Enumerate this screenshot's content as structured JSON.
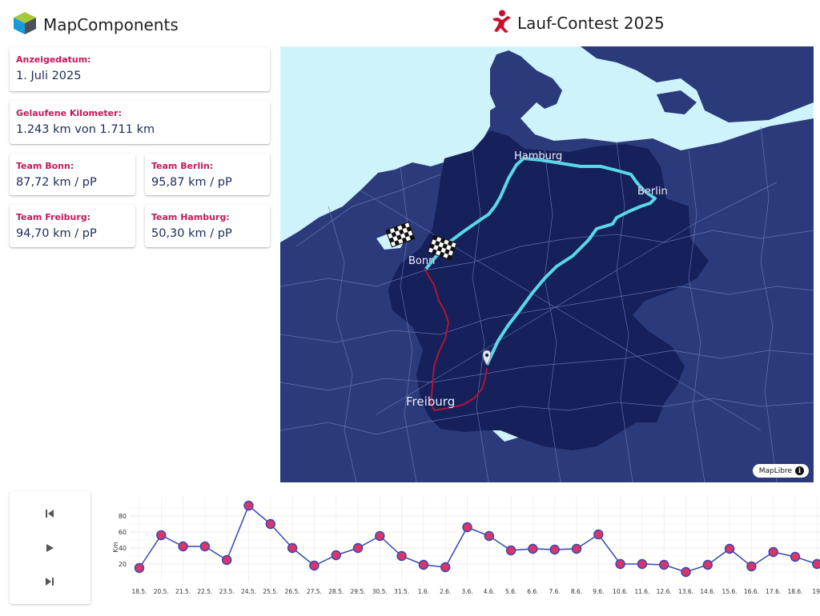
{
  "header": {
    "brand": "MapComponents",
    "contest_title": "Lauf-Contest 2025"
  },
  "cards": {
    "date": {
      "label": "Anzeigedatum:",
      "value": "1. Juli 2025"
    },
    "km": {
      "label": "Gelaufene Kilometer:",
      "value": "1.243 km von 1.711 km"
    },
    "teams": [
      {
        "label": "Team Bonn:",
        "value": "87,72 km / pP"
      },
      {
        "label": "Team Berlin:",
        "value": "95,87 km / pP"
      },
      {
        "label": "Team Freiburg:",
        "value": "94,70 km / pP"
      },
      {
        "label": "Team Hamburg:",
        "value": "50,30 km / pP"
      }
    ]
  },
  "map": {
    "cities": [
      "Hamburg",
      "Berlin",
      "Bonn",
      "Freiburg"
    ],
    "attribution": "MapLibre",
    "colors": {
      "water": "#cef3fb",
      "land": "#2a3a7a",
      "germany": "#16205a",
      "route_main": "#5ad8ea",
      "route_bonn": "#b01535"
    }
  },
  "player": {
    "buttons": [
      "skip-back-icon",
      "play-icon",
      "skip-forward-icon"
    ]
  },
  "chart_data": {
    "type": "line",
    "ylabel": "Km",
    "yticks": [
      20,
      40,
      60,
      80
    ],
    "ylim": [
      5,
      95
    ],
    "categories": [
      "18.5.",
      "20.5.",
      "21.5.",
      "22.5.",
      "23.5.",
      "24.5.",
      "25.5.",
      "26.5.",
      "27.5.",
      "28.5.",
      "29.5.",
      "30.5.",
      "31.5.",
      "1.6.",
      "2.6.",
      "3.6.",
      "4.6.",
      "5.6.",
      "6.6.",
      "7.6.",
      "8.6.",
      "9.6.",
      "10.6.",
      "11.6.",
      "12.6.",
      "13.6.",
      "14.6.",
      "15.6.",
      "16.6.",
      "17.6.",
      "18.6.",
      "19."
    ],
    "values": [
      15,
      56,
      42,
      42,
      25,
      93,
      70,
      40,
      18,
      31,
      40,
      55,
      30,
      19,
      16,
      66,
      55,
      37,
      39,
      38,
      39,
      57,
      20,
      20,
      19,
      10,
      19,
      39,
      17,
      35,
      29,
      20
    ],
    "colors": {
      "line": "#3347b0",
      "marker": "#d8366a",
      "marker_stroke": "#3347b0"
    }
  }
}
